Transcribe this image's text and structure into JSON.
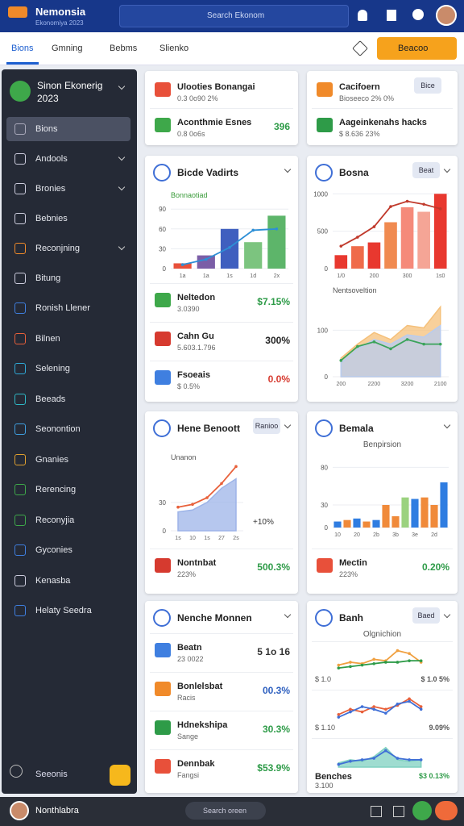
{
  "header": {
    "logo": "Nemonsia",
    "logo_sub": "Ekonomiya 2023",
    "search": "Search Ekonom"
  },
  "tabs": [
    "Bions",
    "Gmning",
    "Bebms",
    "Slienko"
  ],
  "action_button": "Beacoo",
  "sidebar": {
    "title": "Sinon Ekonerig 2023",
    "items": [
      "Bions",
      "Andools",
      "Bronies",
      "Bebnies",
      "Reconjning",
      "Bitung",
      "Ronish Llener",
      "Bilnen",
      "Selening",
      "Beeads",
      "Seonontion",
      "Gnanies",
      "Rerencing",
      "Reconyjia",
      "Gyconies",
      "Kenasba",
      "Helaty Seedra"
    ],
    "footer": "Seeonis"
  },
  "footer": {
    "user": "Nonthlabra",
    "search": "Search oreen"
  },
  "cards": [
    {
      "rows": [
        {
          "label": "Ulooties Bonangai",
          "sub": "0.3 0o90 2%"
        },
        {
          "label": "Aconthmie Esnes",
          "sub": "0.8 0o6s",
          "value": "396",
          "value_color": "#2e9b48"
        }
      ]
    },
    {
      "title": "Bicde Vadirts",
      "charts": [
        {
          "type": "bar",
          "annotation": "Bonnaotiad",
          "categories": [
            "1a",
            "1a",
            "1s",
            "1d",
            "2x"
          ],
          "ylim": [
            0,
            100
          ],
          "yticks": [
            0,
            30,
            60,
            90
          ],
          "series": [
            {
              "type": "bar",
              "colors": [
                "#e8503a",
                "#7b5ea7",
                "#3f5fbf",
                "#7cc47f",
                "#5db56a"
              ],
              "values": [
                8,
                20,
                60,
                40,
                80
              ]
            },
            {
              "type": "line",
              "color": "#2d8fd6",
              "values": [
                6,
                14,
                32,
                58,
                60
              ]
            }
          ]
        }
      ],
      "rows": [
        {
          "label": "Neltedon",
          "sub": "3.0390",
          "value": "$7.15%",
          "value_color": "#2e9b48"
        },
        {
          "label": "Cahn Gu",
          "sub": "5.603.1.796",
          "value": "300%",
          "value_color": "#222"
        },
        {
          "label": "Fsoeais",
          "sub": "$ 0.5%",
          "value": "0.0%",
          "value_color": "#d63a2f"
        }
      ]
    },
    {
      "title": "Hene Benoott",
      "badge": "Ranioo",
      "note": "+10%",
      "charts": [
        {
          "type": "area",
          "annotation": "Unanon",
          "categories": [
            "1s",
            "10",
            "1s",
            "27",
            "2s"
          ],
          "ylim": [
            0,
            70
          ],
          "yticks": [
            0,
            30
          ],
          "series": [
            {
              "type": "area",
              "color": "#9db4e8",
              "values": [
                20,
                22,
                30,
                45,
                55
              ]
            },
            {
              "type": "line",
              "color": "#e8603a",
              "values": [
                25,
                28,
                35,
                50,
                68
              ]
            }
          ]
        }
      ],
      "rows": [
        {
          "label": "Nontnbat",
          "sub": "223%",
          "value": "500.3%",
          "value_color": "#2e9b48"
        }
      ]
    },
    {
      "title": "Nenche Monnen",
      "rows": [
        {
          "label": "Beatn",
          "sub": "23 0022",
          "value": "5 1o 16",
          "value_color": "#333"
        },
        {
          "label": "Bonlelsbat",
          "sub": "Racis",
          "value": "00.3%",
          "value_color": "#2d5fbf"
        },
        {
          "label": "Hdnekshipa",
          "sub": "Sange",
          "value": "30.3%",
          "value_color": "#2e9b48"
        },
        {
          "label": "Dennbak",
          "sub": "Fangsi",
          "value": "$53.9%",
          "value_color": "#2e9b48"
        }
      ]
    },
    {
      "badge": "Bice",
      "rows": [
        {
          "label": "Cacifoern",
          "sub": "Bioseeco 2% 0%"
        },
        {
          "label": "Aageinkenahs hacks",
          "sub": "$ 8.636 23%"
        }
      ]
    },
    {
      "title": "Bosna",
      "badge": "Beat",
      "charts": [
        {
          "type": "bar",
          "categories": [
            "1/0",
            null,
            "200",
            null,
            "300",
            null,
            "1s0"
          ],
          "ylim": [
            0,
            1100
          ],
          "yticks": [
            0,
            500,
            1000
          ],
          "series": [
            {
              "type": "bar",
              "colors": [
                "#e8382f",
                "#ef6b4a",
                "#e8382f",
                "#f08a50",
                "#f58a7a",
                "#f5a596",
                "#e8382f"
              ],
              "values": [
                180,
                300,
                350,
                620,
                820,
                760,
                1000
              ]
            },
            {
              "type": "line",
              "color": "#c0392b",
              "values": [
                300,
                420,
                560,
                830,
                900,
                860,
                800
              ]
            }
          ]
        },
        {
          "type": "area",
          "annotation": "Nentsoveltion",
          "categories": [
            "200",
            null,
            "2200",
            null,
            "3200",
            null,
            "2100"
          ],
          "ylim": [
            0,
            170
          ],
          "yticks": [
            0,
            100
          ],
          "series": [
            {
              "type": "area",
              "color": "#f5c07a",
              "values": [
                40,
                70,
                95,
                80,
                110,
                105,
                150
              ]
            },
            {
              "type": "area",
              "color": "#b8ccf0",
              "values": [
                30,
                60,
                80,
                70,
                90,
                85,
                110
              ]
            },
            {
              "type": "line",
              "color": "#3aa35a",
              "values": [
                35,
                65,
                75,
                60,
                80,
                70,
                70
              ]
            }
          ]
        }
      ]
    },
    {
      "title": "Bemala",
      "subtitle": "Benpirsion",
      "charts": [
        {
          "type": "bar",
          "categories": [
            "10",
            null,
            "20",
            null,
            "2b",
            null,
            "3b",
            null,
            "3e",
            null,
            "2d",
            null
          ],
          "ylim": [
            0,
            90
          ],
          "yticks": [
            0,
            30,
            80
          ],
          "series": [
            {
              "type": "bar",
              "colors": [
                "#2f7de1",
                "#f08a3a",
                "#2f7de1",
                "#f08a3a",
                "#2f7de1",
                "#f08a3a",
                "#f08a3a",
                "#9bd27f",
                "#2f7de1",
                "#f08a3a",
                "#f08a3a",
                "#2f7de1"
              ],
              "values": [
                8,
                10,
                12,
                8,
                10,
                30,
                15,
                40,
                38,
                40,
                30,
                60
              ]
            }
          ]
        }
      ],
      "rows": [
        {
          "label": "Mectin",
          "sub": "223%",
          "value": "0.20%",
          "value_color": "#2e9b48"
        }
      ]
    },
    {
      "title": "Banh",
      "badge": "Baed",
      "subtitle": "Olgnichion",
      "rows": [
        {
          "sub": "$ 1.0",
          "value": "$ 1.0 5%",
          "value_color": "#555",
          "charts": [
            {
              "type": "line",
              "series": [
                {
                  "type": "line",
                  "color": "#f0a040",
                  "values": [
                    10,
                    12,
                    11,
                    14,
                    13,
                    20,
                    18,
                    12
                  ]
                },
                {
                  "type": "line",
                  "color": "#2e9b48",
                  "values": [
                    8,
                    9,
                    10,
                    11,
                    12,
                    12,
                    13,
                    13
                  ]
                }
              ]
            }
          ]
        },
        {
          "sub": "$ 1.10",
          "value": "9.09%",
          "value_color": "#555",
          "charts": [
            {
              "type": "line",
              "series": [
                {
                  "type": "line",
                  "color": "#e8603a",
                  "values": [
                    8,
                    12,
                    10,
                    14,
                    12,
                    15,
                    20,
                    14
                  ]
                },
                {
                  "type": "line",
                  "color": "#3f6fd6",
                  "values": [
                    6,
                    10,
                    14,
                    12,
                    9,
                    16,
                    18,
                    12
                  ]
                }
              ]
            }
          ]
        },
        {
          "label": "Benches",
          "sub": "3.100",
          "value": "$3 0.13%",
          "value_color": "#2e9b48",
          "charts": [
            {
              "type": "area",
              "series": [
                {
                  "type": "area",
                  "color": "#7fd0c0",
                  "values": [
                    10,
                    12,
                    11,
                    14,
                    20,
                    12,
                    11,
                    12
                  ]
                },
                {
                  "type": "line",
                  "color": "#3f6fd6",
                  "values": [
                    9,
                    11,
                    12,
                    13,
                    18,
                    13,
                    12,
                    12
                  ]
                }
              ]
            }
          ]
        }
      ]
    }
  ]
}
